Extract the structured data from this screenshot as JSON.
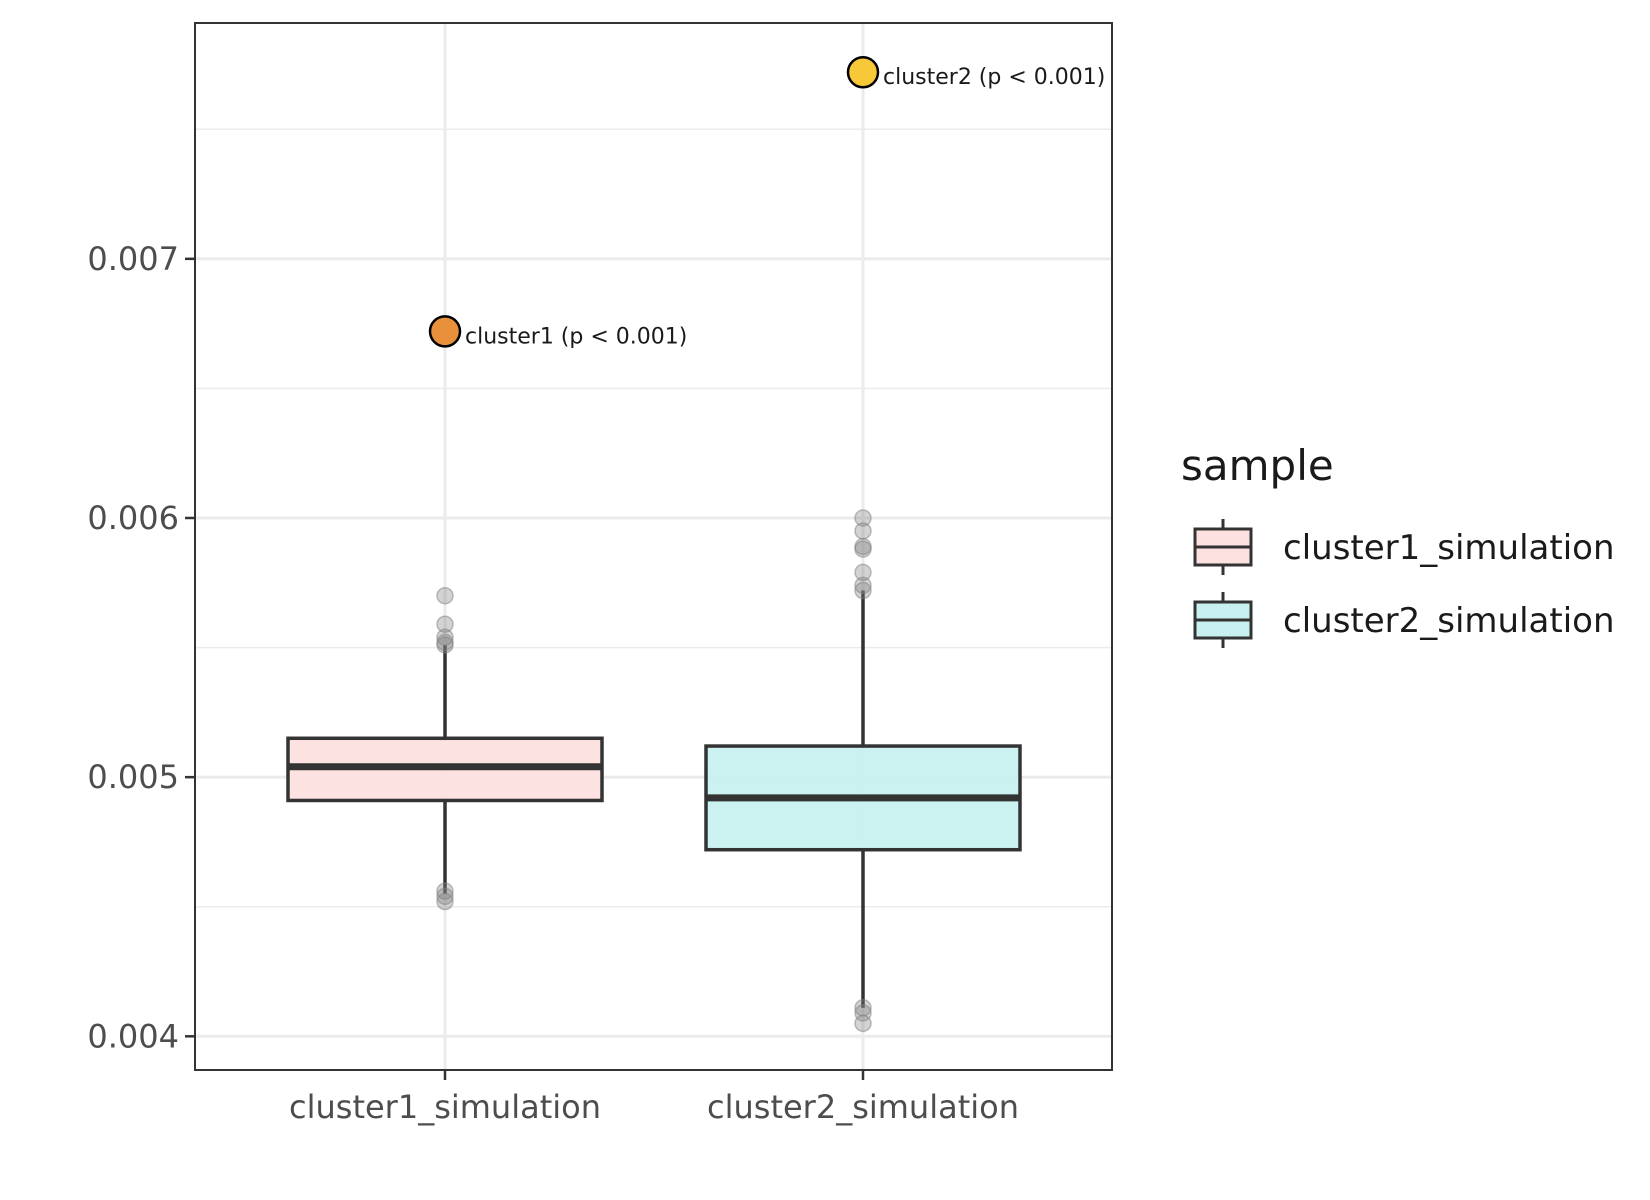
{
  "chart_data": {
    "type": "box",
    "title": "",
    "xlabel": "",
    "ylabel": "",
    "ylim": [
      0.00387,
      0.00791
    ],
    "yticks": [
      0.004,
      0.005,
      0.006,
      0.007
    ],
    "ytick_labels": [
      "0.004",
      "0.005",
      "0.006",
      "0.007"
    ],
    "grid": true,
    "categories": [
      "cluster1_simulation",
      "cluster2_simulation"
    ],
    "boxes": [
      {
        "category": "cluster1_simulation",
        "fill": "#fde0e0",
        "q1": 0.00491,
        "median": 0.00504,
        "q3": 0.00515,
        "whisker_low": 0.00455,
        "whisker_high": 0.00551,
        "outliers": [
          0.0057,
          0.00559,
          0.00554,
          0.00552,
          0.00551,
          0.00456,
          0.00454,
          0.00452
        ]
      },
      {
        "category": "cluster2_simulation",
        "fill": "#c8f0f0",
        "q1": 0.00472,
        "median": 0.00492,
        "q3": 0.00512,
        "whisker_low": 0.00411,
        "whisker_high": 0.00572,
        "outliers": [
          0.006,
          0.00595,
          0.00589,
          0.00588,
          0.00579,
          0.00574,
          0.00572,
          0.00411,
          0.00409,
          0.00405
        ]
      }
    ],
    "observed_points": [
      {
        "category": "cluster1_simulation",
        "value": 0.00672,
        "label": "cluster1 (p < 0.001)",
        "color": "#e8913a"
      },
      {
        "category": "cluster2_simulation",
        "value": 0.00772,
        "label": "cluster2 (p < 0.001)",
        "color": "#f7c838"
      }
    ],
    "legend": {
      "title": "sample",
      "placement": "right",
      "entries": [
        {
          "label": "cluster1_simulation",
          "fill": "#fde0e0"
        },
        {
          "label": "cluster2_simulation",
          "fill": "#c8f0f0"
        }
      ]
    }
  }
}
